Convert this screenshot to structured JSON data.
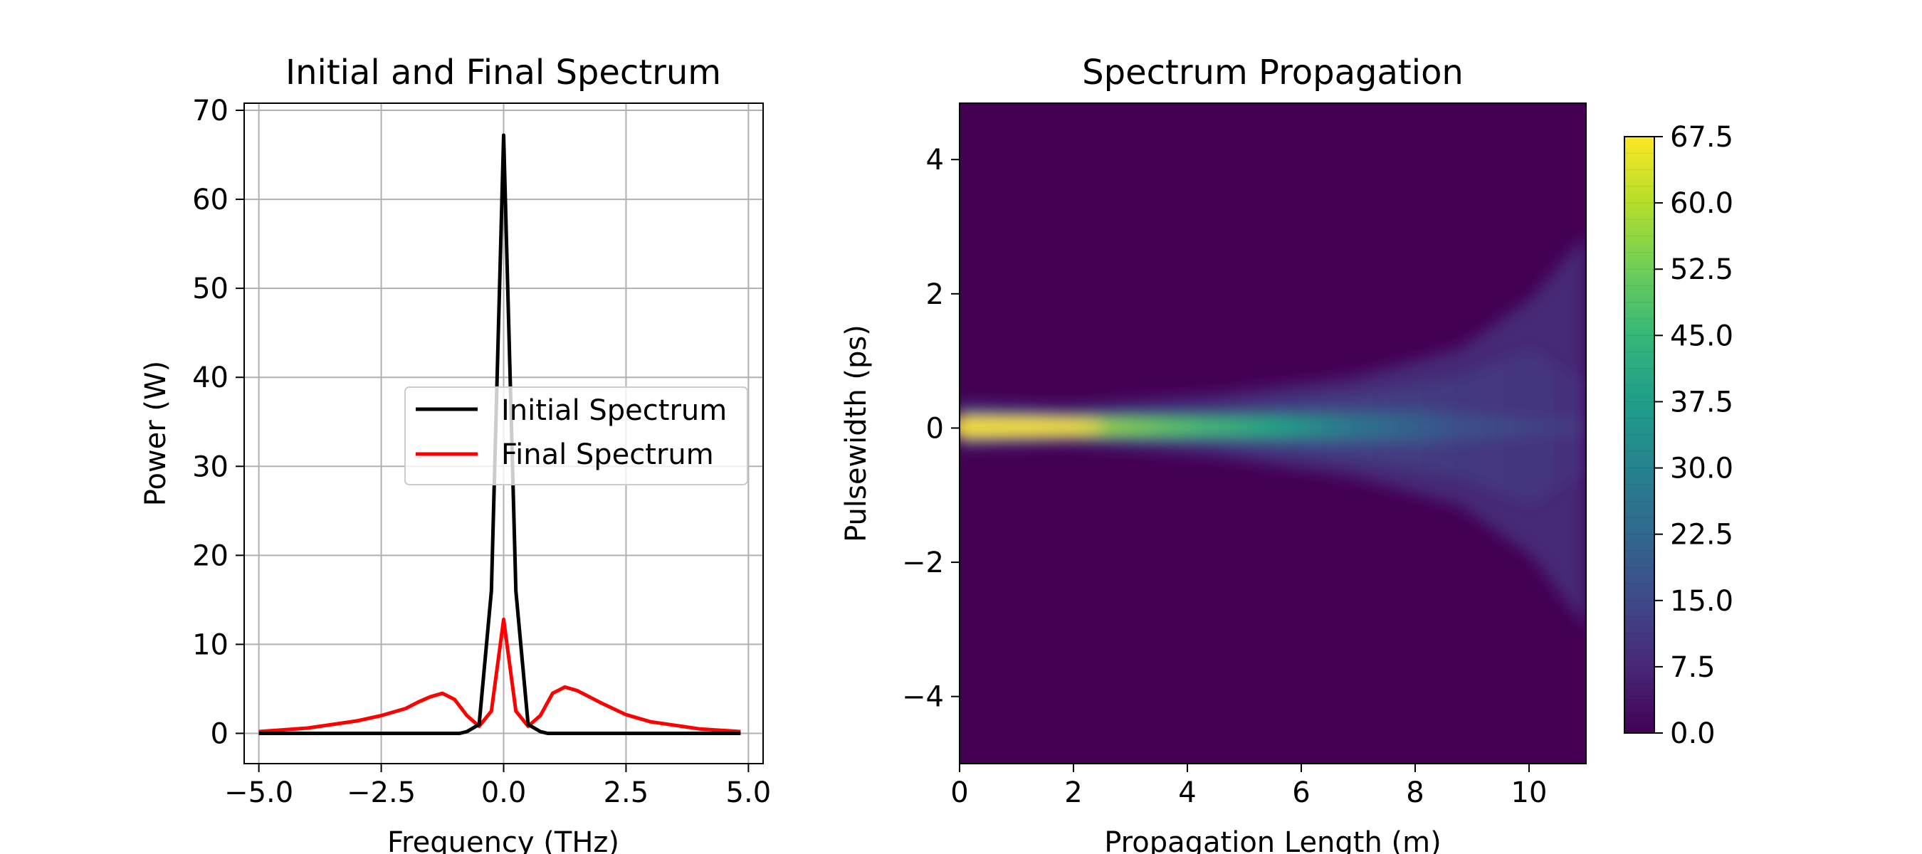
{
  "chart_data": [
    {
      "type": "line",
      "title": "Initial and Final Spectrum",
      "xlabel": "Frequency (THz)",
      "ylabel": "Power (W)",
      "xlim": [
        -5.3,
        5.3
      ],
      "ylim": [
        -3.4,
        70.8
      ],
      "grid": true,
      "xticks": [
        -5.0,
        -2.5,
        0.0,
        2.5,
        5.0
      ],
      "xtick_labels": [
        "−5.0",
        "−2.5",
        "0.0",
        "2.5",
        "5.0"
      ],
      "yticks": [
        0,
        10,
        20,
        30,
        40,
        50,
        60,
        70
      ],
      "ytick_labels": [
        "0",
        "10",
        "20",
        "30",
        "40",
        "50",
        "60",
        "70"
      ],
      "legend": {
        "position": "center-right"
      },
      "series": [
        {
          "name": "Initial Spectrum",
          "color": "#000000",
          "x": [
            -5.0,
            -2.5,
            -1.5,
            -0.9,
            -0.75,
            -0.5,
            -0.25,
            0.0,
            0.25,
            0.5,
            0.75,
            0.9,
            1.5,
            2.5,
            4.84
          ],
          "y": [
            0,
            0,
            0,
            0,
            0.2,
            1.0,
            16.0,
            67.2,
            16.0,
            1.0,
            0.2,
            0,
            0,
            0,
            0
          ]
        },
        {
          "name": "Final Spectrum",
          "color": "#ff0000",
          "x": [
            -5.0,
            -4.0,
            -3.0,
            -2.5,
            -2.0,
            -1.75,
            -1.5,
            -1.25,
            -1.0,
            -0.75,
            -0.5,
            -0.25,
            0.0,
            0.25,
            0.5,
            0.75,
            1.0,
            1.25,
            1.5,
            1.75,
            2.0,
            2.5,
            3.0,
            4.0,
            4.84
          ],
          "y": [
            0.2,
            0.6,
            1.4,
            2.0,
            2.8,
            3.5,
            4.1,
            4.5,
            3.8,
            2.0,
            0.8,
            2.5,
            12.8,
            2.5,
            0.8,
            2.0,
            4.5,
            5.2,
            4.8,
            4.1,
            3.4,
            2.1,
            1.3,
            0.5,
            0.2
          ]
        }
      ]
    },
    {
      "type": "heatmap",
      "title": "Spectrum Propagation",
      "xlabel": "Propagation Length (m)",
      "ylabel": "Pulsewidth (ps)",
      "xlim": [
        0,
        11
      ],
      "ylim": [
        -5,
        4.84
      ],
      "xticks": [
        0,
        2,
        4,
        6,
        8,
        10
      ],
      "xtick_labels": [
        "0",
        "2",
        "4",
        "6",
        "8",
        "10"
      ],
      "yticks": [
        -4,
        -2,
        0,
        2,
        4
      ],
      "ytick_labels": [
        "−4",
        "−2",
        "0",
        "2",
        "4"
      ],
      "colormap": "viridis",
      "colorbar": {
        "min": 0,
        "max": 67.5,
        "ticks": [
          0.0,
          7.5,
          15.0,
          22.5,
          30.0,
          37.5,
          45.0,
          52.5,
          60.0,
          67.5
        ],
        "tick_labels": [
          "0.0",
          "7.5",
          "15.0",
          "22.5",
          "30.0",
          "37.5",
          "45.0",
          "52.5",
          "60.0",
          "67.5"
        ]
      },
      "description_values": {
        "peak_value": 67.2,
        "peak_location": {
          "x": 0.8,
          "y": 0
        },
        "background_value": 0
      }
    }
  ]
}
